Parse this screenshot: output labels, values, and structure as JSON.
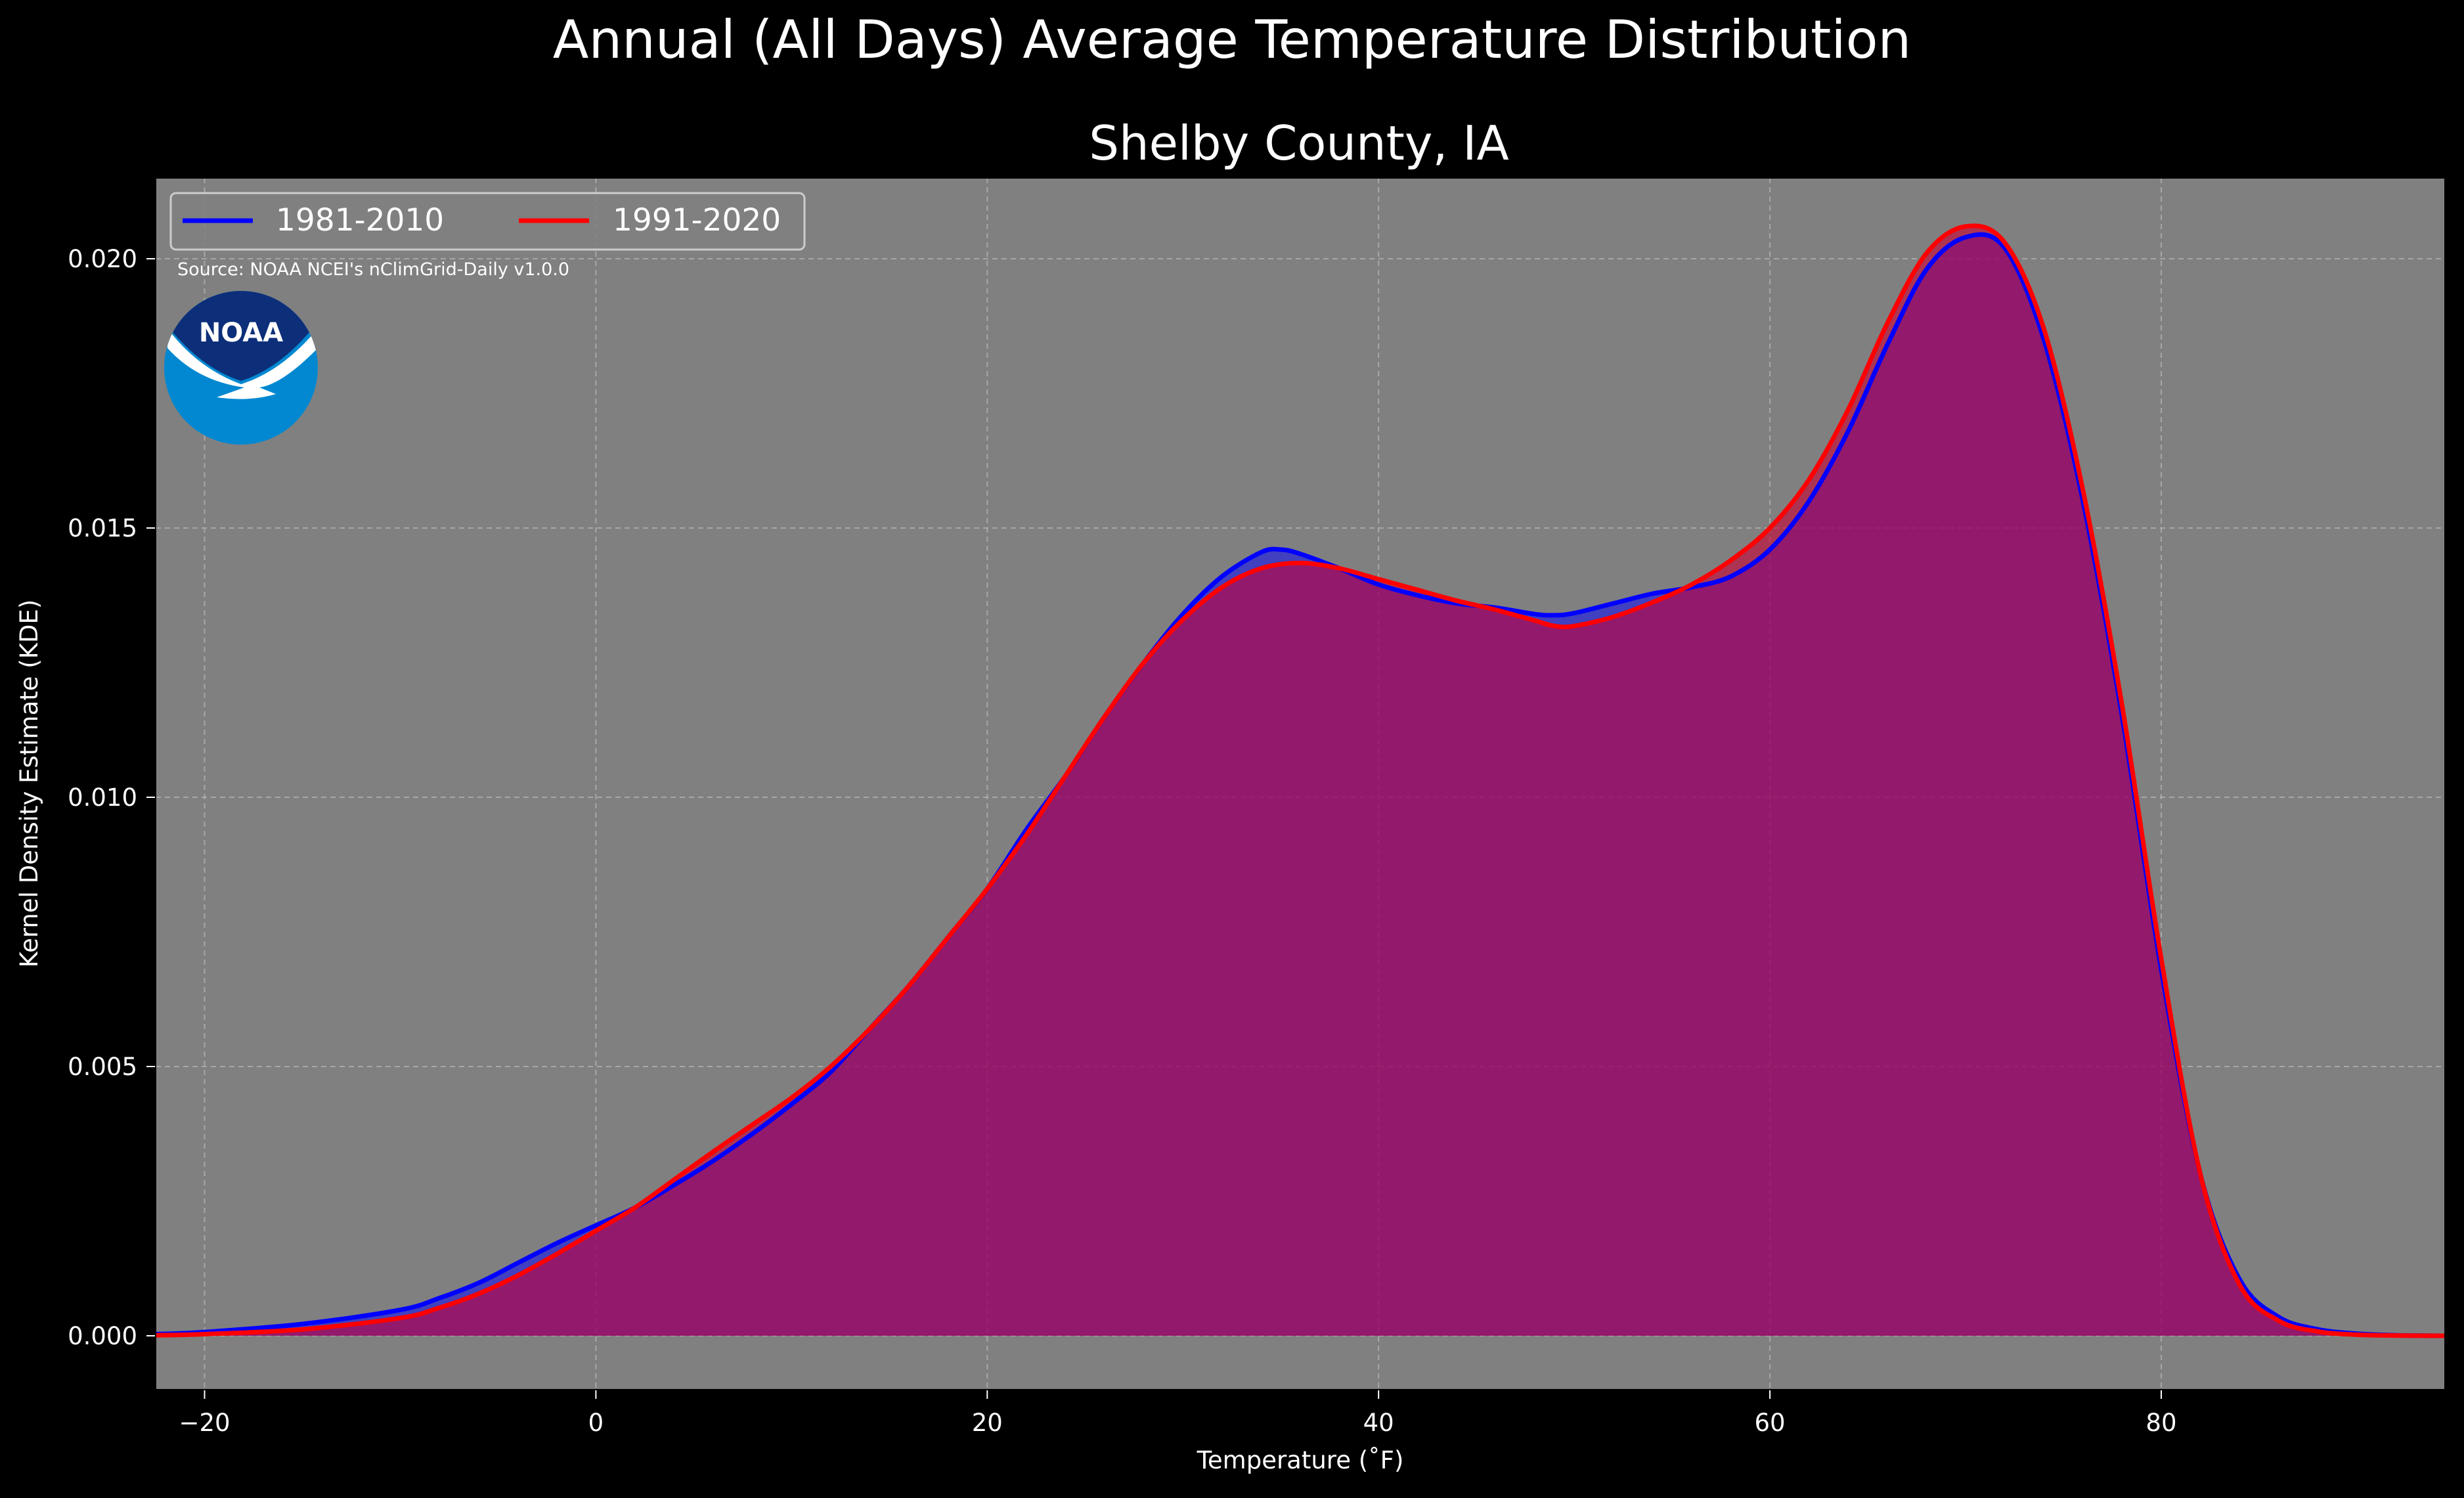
{
  "figure": {
    "suptitle": "Annual (All Days) Average Temperature Distribution",
    "background": "#000000"
  },
  "chart_data": {
    "type": "area",
    "title": "Shelby County, IA",
    "xlabel": "Temperature ($^\\circ$F)",
    "xlabel_display": "Temperature (˚F)",
    "ylabel": "Kernel Density Estimate (KDE)",
    "xlim": [
      -22.5,
      94.5
    ],
    "ylim": [
      -0.001,
      0.0215
    ],
    "x_ticks": [
      -20,
      0,
      20,
      40,
      60,
      80
    ],
    "y_ticks": [
      0.0,
      0.005,
      0.01,
      0.015,
      0.02
    ],
    "y_tick_labels": [
      "0.000",
      "0.005",
      "0.010",
      "0.015",
      "0.020"
    ],
    "x_tick_labels": [
      "−20",
      "0",
      "20",
      "40",
      "60",
      "80"
    ],
    "grid": true,
    "legend_position": "top-left",
    "plot_background": "#808080",
    "source_note": "Source: NOAA NCEI's nClimGrid-Daily v1.0.0",
    "logo_text": "NOAA",
    "series": [
      {
        "name": "1981-2010",
        "color": "#0000ff",
        "fill": "#0000ff",
        "x": [
          -22.5,
          -20,
          -15,
          -10,
          -8,
          -6,
          -4,
          -2,
          0,
          2,
          4,
          6,
          8,
          10,
          12,
          14,
          16,
          18,
          20,
          22,
          24,
          26,
          28,
          30,
          32,
          34,
          35,
          36,
          38,
          40,
          42,
          44,
          46,
          48,
          49,
          50,
          52,
          54,
          56,
          58,
          60,
          62,
          64,
          66,
          68,
          70,
          72,
          74,
          76,
          78,
          80,
          82,
          84,
          86,
          88,
          90,
          92,
          94.5
        ],
        "y": [
          3e-05,
          7e-05,
          0.00022,
          0.00048,
          0.0007,
          0.00098,
          0.00135,
          0.00172,
          0.00205,
          0.00238,
          0.0028,
          0.00325,
          0.00375,
          0.0043,
          0.0049,
          0.0057,
          0.0065,
          0.0074,
          0.0083,
          0.0094,
          0.0104,
          0.0115,
          0.0125,
          0.0134,
          0.0141,
          0.01455,
          0.0146,
          0.01452,
          0.01425,
          0.01395,
          0.01375,
          0.0136,
          0.01352,
          0.0134,
          0.01338,
          0.01342,
          0.0136,
          0.01378,
          0.0139,
          0.0141,
          0.0146,
          0.0155,
          0.0168,
          0.0184,
          0.0198,
          0.0204,
          0.0202,
          0.0185,
          0.0155,
          0.0115,
          0.0068,
          0.003,
          0.00105,
          0.00035,
          0.00012,
          4e-05,
          1e-05,
          0.0
        ]
      },
      {
        "name": "1991-2020",
        "color": "#ff0000",
        "fill": "#cc0033",
        "x": [
          -22.5,
          -20,
          -15,
          -10,
          -8,
          -6,
          -4,
          -2,
          0,
          2,
          4,
          6,
          8,
          10,
          12,
          14,
          16,
          18,
          20,
          22,
          24,
          26,
          28,
          30,
          32,
          34,
          36,
          38,
          40,
          42,
          44,
          46,
          48,
          49,
          50,
          52,
          54,
          56,
          58,
          60,
          62,
          64,
          66,
          68,
          70,
          72,
          74,
          76,
          78,
          80,
          82,
          84,
          86,
          88,
          90,
          92,
          94.5
        ],
        "y": [
          1e-05,
          3e-05,
          0.00012,
          0.00033,
          0.00052,
          0.00078,
          0.00112,
          0.00152,
          0.00195,
          0.00238,
          0.0029,
          0.00342,
          0.00392,
          0.00442,
          0.005,
          0.0057,
          0.0065,
          0.0074,
          0.0083,
          0.0093,
          0.0104,
          0.0115,
          0.0125,
          0.0133,
          0.0139,
          0.01425,
          0.01435,
          0.01425,
          0.01405,
          0.01385,
          0.01365,
          0.01348,
          0.01328,
          0.01318,
          0.01318,
          0.01335,
          0.01362,
          0.01395,
          0.0144,
          0.015,
          0.0159,
          0.0172,
          0.0188,
          0.0201,
          0.0206,
          0.0203,
          0.0187,
          0.0157,
          0.0117,
          0.007,
          0.003,
          0.00095,
          0.00028,
          8e-05,
          2e-05,
          5e-06,
          0.0
        ]
      }
    ]
  }
}
